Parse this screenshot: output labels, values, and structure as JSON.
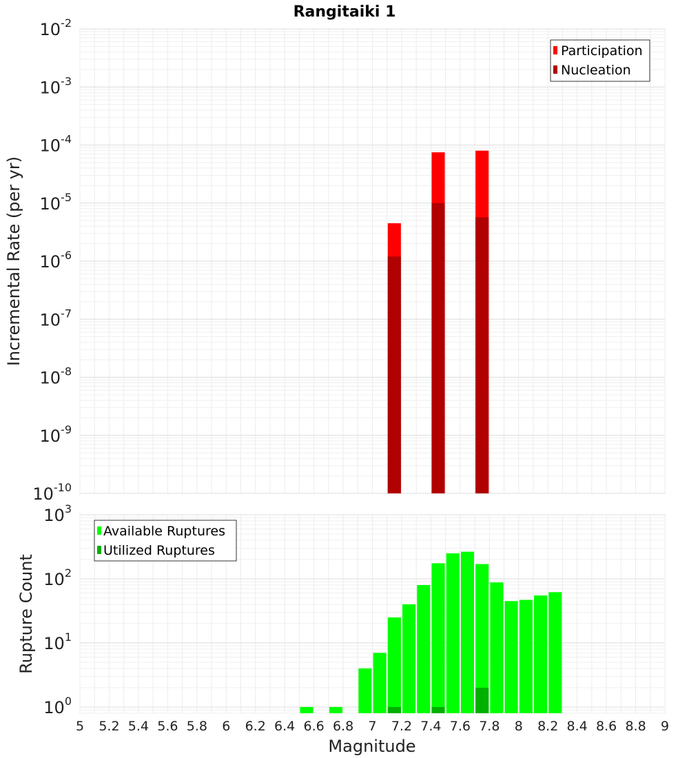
{
  "chart_data": [
    {
      "type": "bar",
      "title": "Rangitaiki 1",
      "xlabel": "",
      "ylabel": "Incremental Rate (per yr)",
      "xlim": [
        5,
        9
      ],
      "ylim": [
        1e-10,
        0.01
      ],
      "yscale": "log",
      "grid": true,
      "legend_position": "top-right",
      "bar_width": 0.09,
      "y_ticks": [
        {
          "mantissa": "10",
          "exp": "-10",
          "value": 1e-10
        },
        {
          "mantissa": "10",
          "exp": "-9",
          "value": 1e-09
        },
        {
          "mantissa": "10",
          "exp": "-8",
          "value": 1e-08
        },
        {
          "mantissa": "10",
          "exp": "-7",
          "value": 1e-07
        },
        {
          "mantissa": "10",
          "exp": "-6",
          "value": 1e-06
        },
        {
          "mantissa": "10",
          "exp": "-5",
          "value": 1e-05
        },
        {
          "mantissa": "10",
          "exp": "-4",
          "value": 0.0001
        },
        {
          "mantissa": "10",
          "exp": "-3",
          "value": 0.001
        },
        {
          "mantissa": "10",
          "exp": "-2",
          "value": 0.01
        }
      ],
      "series": [
        {
          "name": "Participation",
          "color": "#ff0000",
          "x": [
            7.15,
            7.45,
            7.75
          ],
          "values": [
            4.5e-06,
            7.5e-05,
            8e-05
          ]
        },
        {
          "name": "Nucleation",
          "color": "#b00000",
          "x": [
            7.15,
            7.45,
            7.75
          ],
          "values": [
            1.2e-06,
            1e-05,
            5.7e-06
          ]
        }
      ]
    },
    {
      "type": "bar",
      "title": "",
      "xlabel": "Magnitude",
      "ylabel": "Rupture Count",
      "xlim": [
        5,
        9
      ],
      "ylim": [
        0.8,
        1000
      ],
      "yscale": "log",
      "grid": true,
      "legend_position": "top-left",
      "bar_width": 0.09,
      "x_ticks": [
        "5",
        "5.2",
        "5.4",
        "5.6",
        "5.8",
        "6",
        "6.2",
        "6.4",
        "6.6",
        "6.8",
        "7",
        "7.2",
        "7.4",
        "7.6",
        "7.8",
        "8",
        "8.2",
        "8.4",
        "8.6",
        "8.8",
        "9"
      ],
      "y_ticks": [
        {
          "mantissa": "10",
          "exp": "0",
          "value": 1
        },
        {
          "mantissa": "10",
          "exp": "1",
          "value": 10
        },
        {
          "mantissa": "10",
          "exp": "2",
          "value": 100
        },
        {
          "mantissa": "10",
          "exp": "3",
          "value": 1000
        }
      ],
      "series": [
        {
          "name": "Available Ruptures",
          "color": "#00ff00",
          "x": [
            6.55,
            6.75,
            6.95,
            7.05,
            7.15,
            7.25,
            7.35,
            7.45,
            7.55,
            7.65,
            7.75,
            7.85,
            7.95,
            8.05,
            8.15,
            8.25
          ],
          "values": [
            1,
            1,
            4,
            7,
            25,
            40,
            80,
            175,
            250,
            265,
            170,
            88,
            45,
            47,
            55,
            62
          ]
        },
        {
          "name": "Utilized Ruptures",
          "color": "#00b000",
          "x": [
            7.15,
            7.45,
            7.75
          ],
          "values": [
            1,
            1,
            2
          ]
        }
      ]
    }
  ]
}
